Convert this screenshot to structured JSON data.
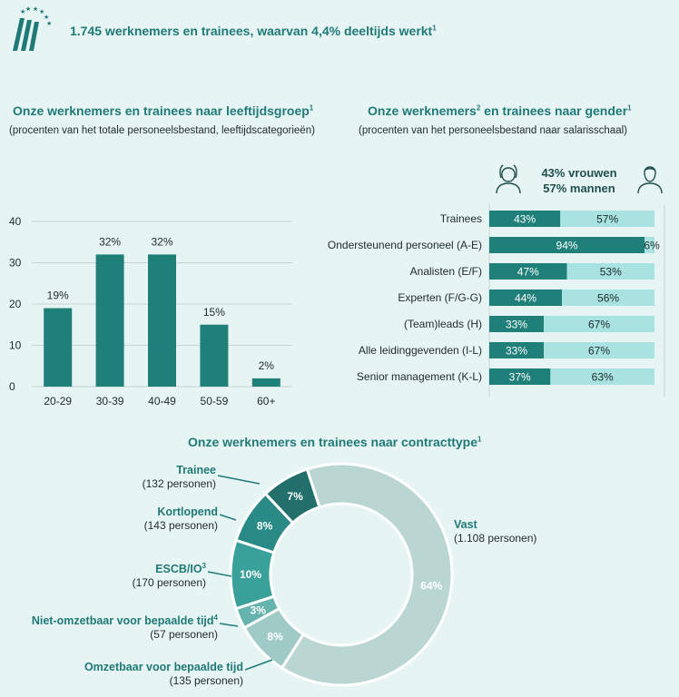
{
  "header": {
    "title": "1.745 werknemers en trainees, waarvan 4,4% deeltijds werkt",
    "title_sup": "1"
  },
  "colors": {
    "teal": "#1f7f79",
    "teal_light": "#a9e3e1",
    "background": "#e7f4f4",
    "title": "#1f7a77"
  },
  "age_section": {
    "title": "Onze werknemers en trainees naar leeftijdsgroep",
    "title_sup": "1",
    "subtitle": "(procenten van het totale personeelsbestand, leeftijdscategorieën)"
  },
  "gender_section": {
    "title_a": "Onze werknemers",
    "title_sup_a": "2",
    "title_b": " en trainees naar gender",
    "title_sup_b": "1",
    "subtitle": "(procenten van het personeelsbestand naar salarisschaal)",
    "summary_women": "43% vrouwen",
    "summary_men": "57% mannen",
    "woman_icon": "woman-icon",
    "man_icon": "man-icon"
  },
  "contract_section": {
    "title": "Onze werknemers en trainees naar contracttype",
    "title_sup": "1"
  },
  "chart_data": [
    {
      "type": "bar",
      "categories": [
        "20-29",
        "30-39",
        "40-49",
        "50-59",
        "60+"
      ],
      "values": [
        19,
        32,
        32,
        15,
        2
      ],
      "data_labels": [
        "19%",
        "32%",
        "32%",
        "15%",
        "2%"
      ],
      "yticks": [
        0,
        10,
        20,
        30,
        40
      ],
      "ylim": [
        0,
        40
      ],
      "grid": true
    },
    {
      "type": "bar",
      "orientation": "horizontal",
      "stacked": true,
      "categories": [
        "Trainees",
        "Ondersteunend personeel (A-E)",
        "Analisten (E/F)",
        "Experten (F/G-G)",
        "(Team)leads (H)",
        "Alle leidinggevenden (I-L)",
        "Senior management (K-L)"
      ],
      "series": [
        {
          "values": [
            43,
            94,
            47,
            44,
            33,
            33,
            37
          ],
          "color": "#1f7f79"
        },
        {
          "values": [
            57,
            6,
            53,
            56,
            67,
            67,
            63
          ],
          "color": "#a9e3e1"
        }
      ],
      "xlim": [
        0,
        100
      ]
    },
    {
      "type": "pie",
      "donut": true,
      "slices": [
        {
          "label": "Vast",
          "persons": "(1.108 personen)",
          "value": 64,
          "text": "64%",
          "color": "#b9d6d3"
        },
        {
          "label": "Omzetbaar voor bepaalde tijd",
          "persons": "(135 personen)",
          "value": 8,
          "text": "8%",
          "color": "#9fcac6"
        },
        {
          "label": "Niet-omzetbaar voor bepaalde tijd",
          "sup": "4",
          "persons": "(57 personen)",
          "value": 3,
          "text": "3%",
          "color": "#65b3ad"
        },
        {
          "label": "ESCB/IO",
          "sup": "3",
          "persons": "(170 personen)",
          "value": 10,
          "text": "10%",
          "color": "#3aa09a"
        },
        {
          "label": "Kortlopend",
          "persons": "(143 personen)",
          "value": 8,
          "text": "8%",
          "color": "#2a8a85"
        },
        {
          "label": "Trainee",
          "persons": "(132 personen)",
          "value": 7,
          "text": "7%",
          "color": "#226f6b"
        }
      ]
    }
  ]
}
